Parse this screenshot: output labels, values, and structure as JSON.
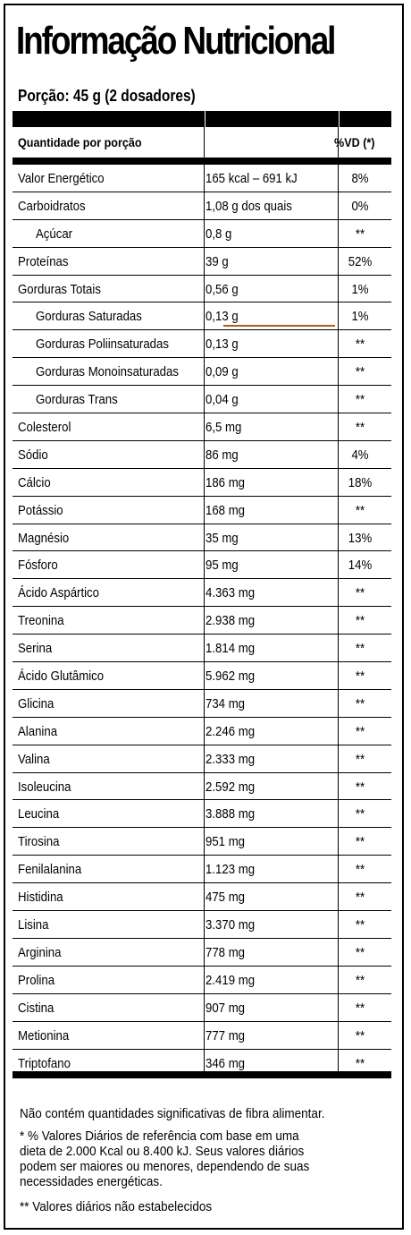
{
  "title": "Informação Nutricional",
  "serving": "Porção: 45 g (2 dosadores)",
  "header": {
    "quantity_label": "Quantidade por porção",
    "vd_label": "%VD (*)"
  },
  "rows": [
    {
      "name": "Valor Energético",
      "amount": "165 kcal – 691 kJ",
      "vd": "8%",
      "indent": false
    },
    {
      "name": "Carboidratos",
      "amount": "1,08 g dos quais",
      "vd": "0%",
      "indent": false
    },
    {
      "name": "Açúcar",
      "amount": "0,8 g",
      "vd": "**",
      "indent": true
    },
    {
      "name": "Proteínas",
      "amount": "39 g",
      "vd": "52%",
      "indent": false
    },
    {
      "name": "Gorduras Totais",
      "amount": "0,56 g",
      "vd": "1%",
      "indent": false
    },
    {
      "name": "Gorduras Saturadas",
      "amount": "0,13 g",
      "vd": "1%",
      "indent": true
    },
    {
      "name": "Gorduras Poliinsaturadas",
      "amount": "0,13 g",
      "vd": "**",
      "indent": true
    },
    {
      "name": "Gorduras Monoinsaturadas",
      "amount": "0,09 g",
      "vd": "**",
      "indent": true
    },
    {
      "name": "Gorduras Trans",
      "amount": "0,04 g",
      "vd": "**",
      "indent": true
    },
    {
      "name": "Colesterol",
      "amount": "6,5 mg",
      "vd": "**",
      "indent": false
    },
    {
      "name": "Sódio",
      "amount": "86 mg",
      "vd": "4%",
      "indent": false
    },
    {
      "name": "Cálcio",
      "amount": "186 mg",
      "vd": "18%",
      "indent": false
    },
    {
      "name": "Potássio",
      "amount": "168 mg",
      "vd": "**",
      "indent": false
    },
    {
      "name": "Magnésio",
      "amount": "35 mg",
      "vd": "13%",
      "indent": false
    },
    {
      "name": "Fósforo",
      "amount": "95 mg",
      "vd": "14%",
      "indent": false
    },
    {
      "name": "Ácido Aspártico",
      "amount": "4.363 mg",
      "vd": "**",
      "indent": false
    },
    {
      "name": "Treonina",
      "amount": "2.938 mg",
      "vd": "**",
      "indent": false
    },
    {
      "name": "Serina",
      "amount": "1.814 mg",
      "vd": "**",
      "indent": false
    },
    {
      "name": "Ácido Glutâmico",
      "amount": "5.962 mg",
      "vd": "**",
      "indent": false
    },
    {
      "name": "Glicina",
      "amount": "734 mg",
      "vd": "**",
      "indent": false
    },
    {
      "name": "Alanina",
      "amount": "2.246 mg",
      "vd": "**",
      "indent": false
    },
    {
      "name": "Valina",
      "amount": "2.333 mg",
      "vd": "**",
      "indent": false
    },
    {
      "name": "Isoleucina",
      "amount": "2.592 mg",
      "vd": "**",
      "indent": false
    },
    {
      "name": "Leucina",
      "amount": "3.888 mg",
      "vd": "**",
      "indent": false
    },
    {
      "name": "Tirosina",
      "amount": "951 mg",
      "vd": "**",
      "indent": false
    },
    {
      "name": "Fenilalanina",
      "amount": "1.123 mg",
      "vd": "**",
      "indent": false
    },
    {
      "name": "Histidina",
      "amount": "475 mg",
      "vd": "**",
      "indent": false
    },
    {
      "name": "Lisina",
      "amount": "3.370 mg",
      "vd": "**",
      "indent": false
    },
    {
      "name": "Arginina",
      "amount": "778 mg",
      "vd": "**",
      "indent": false
    },
    {
      "name": "Prolina",
      "amount": "2.419 mg",
      "vd": "**",
      "indent": false
    },
    {
      "name": "Cistina",
      "amount": "907 mg",
      "vd": "**",
      "indent": false
    },
    {
      "name": "Metionina",
      "amount": "777 mg",
      "vd": "**",
      "indent": false
    },
    {
      "name": "Triptofano",
      "amount": "346 mg",
      "vd": "**",
      "indent": false
    }
  ],
  "footer": {
    "fiber_note": "Não contém quantidades significativas de fibra alimentar.",
    "vd_note_lines": [
      "* % Valores Diários de referência com base em uma",
      "dieta de 2.000 Kcal ou 8.400 kJ. Seus valores diários",
      "podem ser maiores ou menores, dependendo de suas",
      "necessidades energéticas."
    ],
    "not_established_note": "** Valores diários não estabelecidos"
  }
}
